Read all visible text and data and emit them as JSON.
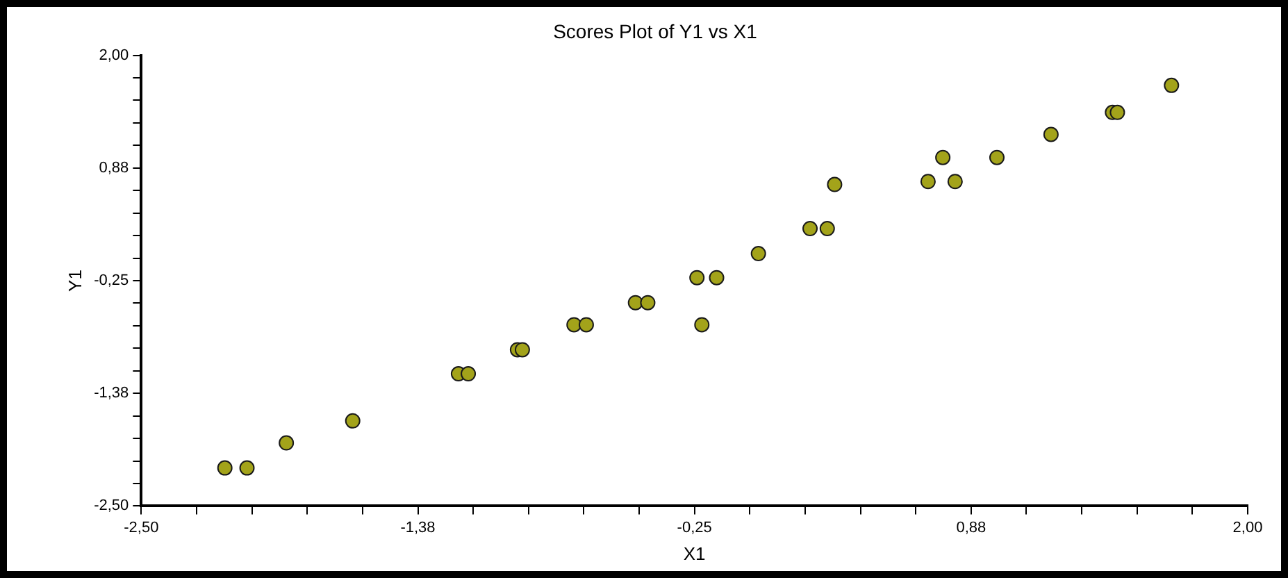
{
  "chart_data": {
    "type": "scatter",
    "title": "Scores Plot of Y1 vs X1",
    "xlabel": "X1",
    "ylabel": "Y1",
    "marker": "circle",
    "grid": false,
    "legend": false,
    "xlim": [
      -2.5,
      2.0
    ],
    "ylim": [
      -2.5,
      2.0
    ],
    "xticks": [
      {
        "value": -2.5,
        "label": "-2,50"
      },
      {
        "value": -2.275,
        "label": null
      },
      {
        "value": -2.05,
        "label": null
      },
      {
        "value": -1.825,
        "label": null
      },
      {
        "value": -1.6,
        "label": null
      },
      {
        "value": -1.375,
        "label": "-1,38"
      },
      {
        "value": -1.15,
        "label": null
      },
      {
        "value": -0.925,
        "label": null
      },
      {
        "value": -0.7,
        "label": null
      },
      {
        "value": -0.475,
        "label": null
      },
      {
        "value": -0.25,
        "label": "-0,25"
      },
      {
        "value": -0.025,
        "label": null
      },
      {
        "value": 0.2,
        "label": null
      },
      {
        "value": 0.425,
        "label": null
      },
      {
        "value": 0.65,
        "label": null
      },
      {
        "value": 0.875,
        "label": "0,88"
      },
      {
        "value": 1.1,
        "label": null
      },
      {
        "value": 1.325,
        "label": null
      },
      {
        "value": 1.55,
        "label": null
      },
      {
        "value": 1.775,
        "label": null
      },
      {
        "value": 2.0,
        "label": "2,00"
      }
    ],
    "yticks": [
      {
        "value": -2.5,
        "label": "-2,50"
      },
      {
        "value": -2.275,
        "label": null
      },
      {
        "value": -2.05,
        "label": null
      },
      {
        "value": -1.825,
        "label": null
      },
      {
        "value": -1.6,
        "label": null
      },
      {
        "value": -1.375,
        "label": "-1,38"
      },
      {
        "value": -1.15,
        "label": null
      },
      {
        "value": -0.925,
        "label": null
      },
      {
        "value": -0.7,
        "label": null
      },
      {
        "value": -0.475,
        "label": null
      },
      {
        "value": -0.25,
        "label": "-0,25"
      },
      {
        "value": -0.025,
        "label": null
      },
      {
        "value": 0.2,
        "label": null
      },
      {
        "value": 0.425,
        "label": null
      },
      {
        "value": 0.65,
        "label": null
      },
      {
        "value": 0.875,
        "label": "0,88"
      },
      {
        "value": 1.1,
        "label": null
      },
      {
        "value": 1.325,
        "label": null
      },
      {
        "value": 1.55,
        "label": null
      },
      {
        "value": 1.775,
        "label": null
      },
      {
        "value": 2.0,
        "label": "2,00"
      }
    ],
    "series": [
      {
        "color": "#a3a31a",
        "x": [
          -2.16,
          -2.07,
          -1.91,
          -1.64,
          -1.21,
          -1.17,
          -0.97,
          -0.95,
          -0.74,
          -0.69,
          -0.49,
          -0.44,
          -0.22,
          -0.24,
          -0.16,
          0.01,
          0.22,
          0.29,
          0.32,
          0.7,
          0.81,
          0.76,
          0.98,
          1.2,
          1.45,
          1.47,
          1.69
        ],
        "values": [
          -2.12,
          -2.12,
          -1.87,
          -1.65,
          -1.18,
          -1.18,
          -0.94,
          -0.94,
          -0.69,
          -0.69,
          -0.47,
          -0.47,
          -0.69,
          -0.22,
          -0.22,
          0.02,
          0.27,
          0.27,
          0.71,
          0.74,
          0.74,
          0.98,
          0.98,
          1.21,
          1.43,
          1.43,
          1.7
        ]
      }
    ]
  }
}
